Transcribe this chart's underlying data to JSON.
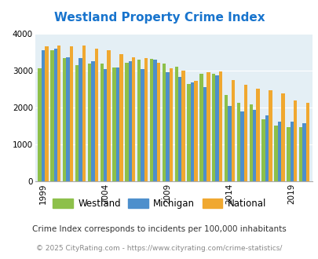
{
  "title": "Westland Property Crime Index",
  "title_color": "#1874cd",
  "years": [
    1999,
    2000,
    2001,
    2002,
    2003,
    2004,
    2005,
    2006,
    2007,
    2008,
    2009,
    2010,
    2011,
    2012,
    2013,
    2014,
    2015,
    2016,
    2017,
    2018,
    2019,
    2020
  ],
  "westland": [
    3060,
    3560,
    3330,
    3150,
    3200,
    3190,
    3080,
    3220,
    3300,
    3320,
    3200,
    3110,
    2640,
    2920,
    2920,
    2330,
    2120,
    2080,
    1680,
    1500,
    1470,
    1470
  ],
  "michigan": [
    3560,
    3600,
    3350,
    3340,
    3260,
    3050,
    3080,
    3250,
    3050,
    3300,
    2950,
    2830,
    2680,
    2560,
    2870,
    2050,
    1900,
    1930,
    1780,
    1620,
    1620,
    1580
  ],
  "national": [
    3650,
    3670,
    3650,
    3680,
    3600,
    3560,
    3450,
    3350,
    3340,
    3220,
    3060,
    2990,
    2720,
    2950,
    2970,
    2740,
    2620,
    2510,
    2470,
    2390,
    2190,
    2120
  ],
  "westland_color": "#8dc04a",
  "michigan_color": "#4d8fcc",
  "national_color": "#f0a830",
  "bg_color": "#e4eff5",
  "ylim": [
    0,
    4000
  ],
  "yticks": [
    0,
    1000,
    2000,
    3000,
    4000
  ],
  "xlabel_ticks": [
    1999,
    2004,
    2009,
    2014,
    2019
  ],
  "legend_labels": [
    "Westland",
    "Michigan",
    "National"
  ],
  "footnote1": "Crime Index corresponds to incidents per 100,000 inhabitants",
  "footnote2": "© 2025 CityRating.com - https://www.cityrating.com/crime-statistics/",
  "footnote1_color": "#333333",
  "footnote2_color": "#888888"
}
